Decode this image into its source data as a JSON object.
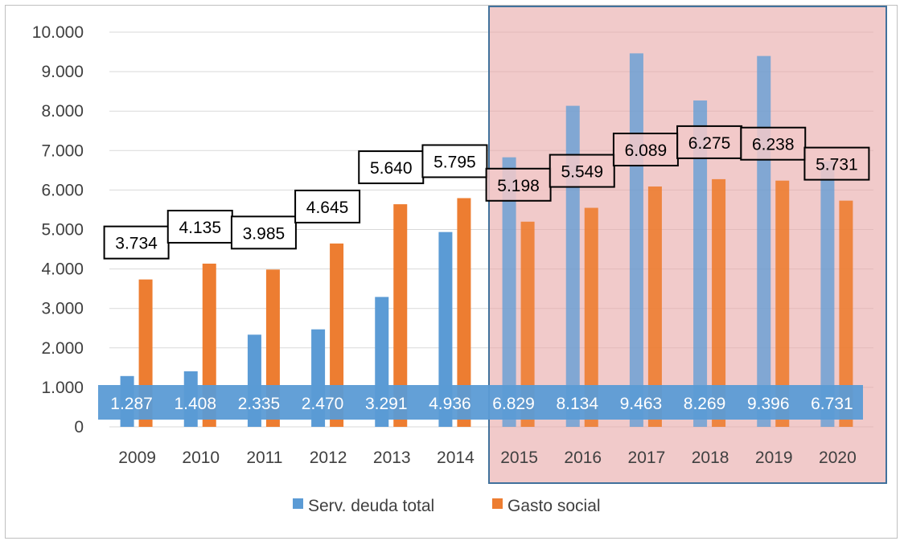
{
  "chart_data": {
    "type": "bar",
    "categories": [
      "2009",
      "2010",
      "2011",
      "2012",
      "2013",
      "2014",
      "2015",
      "2016",
      "2017",
      "2018",
      "2019",
      "2020"
    ],
    "series": [
      {
        "name": "Serv. deuda total",
        "color": "#5B9BD5",
        "values": [
          1287,
          1408,
          2335,
          2470,
          3291,
          4936,
          6829,
          8134,
          9463,
          8269,
          9396,
          6731
        ],
        "labels": [
          "1.287",
          "1.408",
          "2.335",
          "2.470",
          "3.291",
          "4.936",
          "6.829",
          "8.134",
          "9.463",
          "8.269",
          "9.396",
          "6.731"
        ]
      },
      {
        "name": "Gasto social",
        "color": "#ED7D31",
        "values": [
          3734,
          4135,
          3985,
          4645,
          5640,
          5795,
          5198,
          5549,
          6089,
          6275,
          6238,
          5731
        ],
        "labels": [
          "3.734",
          "4.135",
          "3.985",
          "4.645",
          "5.640",
          "5.795",
          "5.198",
          "5.549",
          "6.089",
          "6.275",
          "6.238",
          "5.731"
        ]
      }
    ],
    "ylim": [
      0,
      10000
    ],
    "yticks": [
      0,
      1000,
      2000,
      3000,
      4000,
      5000,
      6000,
      7000,
      8000,
      9000,
      10000
    ],
    "ytick_labels": [
      "0",
      "1.000",
      "2.000",
      "3.000",
      "4.000",
      "5.000",
      "6.000",
      "7.000",
      "8.000",
      "9.000",
      "10.000"
    ],
    "grid": true,
    "legend_position": "bottom",
    "highlight": {
      "from": "2015",
      "to": "2020",
      "color": "#E8A6A6"
    }
  }
}
